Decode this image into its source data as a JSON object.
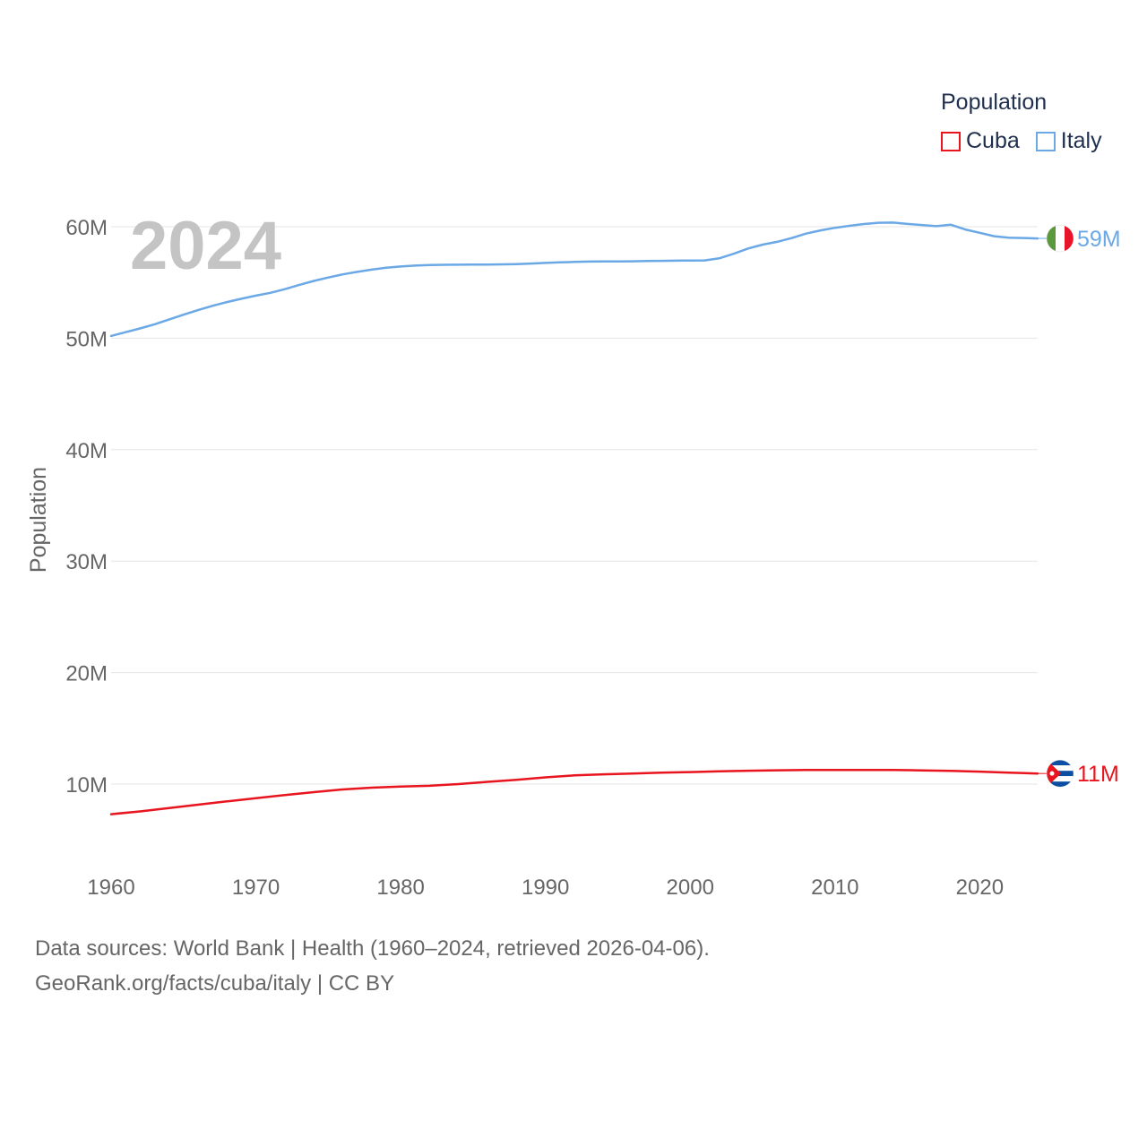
{
  "chart_data": {
    "type": "line",
    "year_label": "2024",
    "ylabel": "Population",
    "x_ticks": [
      1960,
      1970,
      1980,
      1990,
      2000,
      2010,
      2020
    ],
    "y_ticks": [
      {
        "value": 10000000,
        "label": "10M"
      },
      {
        "value": 20000000,
        "label": "20M"
      },
      {
        "value": 30000000,
        "label": "30M"
      },
      {
        "value": 40000000,
        "label": "40M"
      },
      {
        "value": 50000000,
        "label": "50M"
      },
      {
        "value": 60000000,
        "label": "60M"
      }
    ],
    "xlim": [
      1960,
      2024
    ],
    "ylim": [
      4000000,
      64000000
    ],
    "legend": {
      "title": "Population",
      "entries": [
        {
          "name": "Cuba",
          "color": "#e8141e"
        },
        {
          "name": "Italy",
          "color": "#6aa8e6"
        }
      ]
    },
    "series": [
      {
        "name": "Italy",
        "color": "#6aa8e6",
        "end_label": "59M",
        "flag": "italy-flag",
        "x": [
          1960,
          1961,
          1962,
          1963,
          1964,
          1965,
          1966,
          1967,
          1968,
          1969,
          1970,
          1971,
          1972,
          1973,
          1974,
          1975,
          1976,
          1977,
          1978,
          1979,
          1980,
          1981,
          1982,
          1983,
          1984,
          1985,
          1986,
          1987,
          1988,
          1989,
          1990,
          1991,
          1992,
          1993,
          1994,
          1995,
          1996,
          1997,
          1998,
          1999,
          2000,
          2001,
          2002,
          2003,
          2004,
          2005,
          2006,
          2007,
          2008,
          2009,
          2010,
          2011,
          2012,
          2013,
          2014,
          2015,
          2016,
          2017,
          2018,
          2019,
          2020,
          2021,
          2022,
          2023,
          2024
        ],
        "values": [
          50200000,
          50540000,
          50880000,
          51250000,
          51670000,
          52110000,
          52520000,
          52900000,
          53240000,
          53540000,
          53820000,
          54070000,
          54400000,
          54780000,
          55140000,
          55440000,
          55720000,
          55950000,
          56150000,
          56320000,
          56430000,
          56510000,
          56560000,
          56580000,
          56590000,
          56600000,
          56600000,
          56620000,
          56650000,
          56700000,
          56750000,
          56800000,
          56840000,
          56870000,
          56880000,
          56880000,
          56900000,
          56920000,
          56940000,
          56950000,
          56970000,
          56980000,
          57160000,
          57570000,
          58050000,
          58390000,
          58640000,
          58980000,
          59380000,
          59670000,
          59900000,
          60080000,
          60240000,
          60350000,
          60370000,
          60250000,
          60150000,
          60050000,
          60180000,
          59750000,
          59450000,
          59150000,
          59020000,
          58990000,
          58950000
        ]
      },
      {
        "name": "Cuba",
        "color": "#e8141e",
        "end_label": "11M",
        "flag": "cuba-flag",
        "x": [
          1960,
          1962,
          1964,
          1966,
          1968,
          1970,
          1972,
          1974,
          1976,
          1978,
          1980,
          1982,
          1984,
          1986,
          1988,
          1990,
          1992,
          1994,
          1996,
          1998,
          2000,
          2002,
          2004,
          2006,
          2008,
          2010,
          2012,
          2014,
          2016,
          2018,
          2020,
          2022,
          2024
        ],
        "values": [
          7300000,
          7550000,
          7850000,
          8150000,
          8450000,
          8730000,
          9020000,
          9280000,
          9520000,
          9680000,
          9780000,
          9850000,
          10000000,
          10200000,
          10380000,
          10600000,
          10780000,
          10880000,
          10950000,
          11020000,
          11080000,
          11150000,
          11200000,
          11240000,
          11260000,
          11260000,
          11270000,
          11260000,
          11230000,
          11180000,
          11120000,
          11030000,
          10950000
        ]
      }
    ]
  },
  "footer": {
    "sources": "Data sources: World Bank | Health (1960–2024, retrieved 2026-04-06).",
    "credit": "GeoRank.org/facts/cuba/italy | CC BY"
  }
}
